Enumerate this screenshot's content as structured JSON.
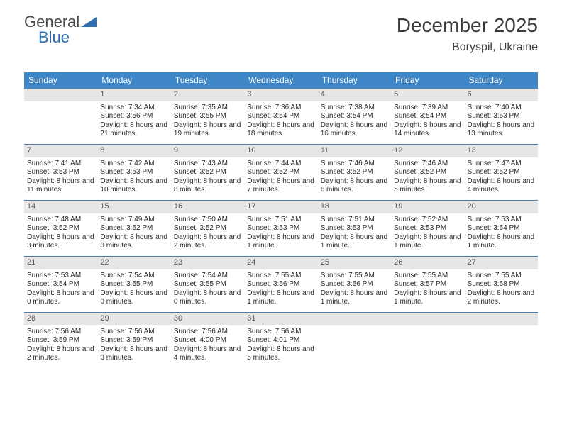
{
  "logo": {
    "word1": "General",
    "word2": "Blue",
    "word1_color": "#5a5a5a",
    "word2_color": "#2f6fb0",
    "tri_color": "#2f6fb0"
  },
  "header": {
    "month_title": "December 2025",
    "location": "Boryspil, Ukraine"
  },
  "colors": {
    "header_bar": "#3f86c7",
    "header_text": "#ffffff",
    "daynum_bg": "#e6e6e6",
    "week_border": "#4a7aa8",
    "body_text": "#2b2b2b"
  },
  "day_headers": [
    "Sunday",
    "Monday",
    "Tuesday",
    "Wednesday",
    "Thursday",
    "Friday",
    "Saturday"
  ],
  "weeks": [
    [
      {
        "n": "",
        "sr": "",
        "ss": "",
        "dl": ""
      },
      {
        "n": "1",
        "sr": "Sunrise: 7:34 AM",
        "ss": "Sunset: 3:56 PM",
        "dl": "Daylight: 8 hours and 21 minutes."
      },
      {
        "n": "2",
        "sr": "Sunrise: 7:35 AM",
        "ss": "Sunset: 3:55 PM",
        "dl": "Daylight: 8 hours and 19 minutes."
      },
      {
        "n": "3",
        "sr": "Sunrise: 7:36 AM",
        "ss": "Sunset: 3:54 PM",
        "dl": "Daylight: 8 hours and 18 minutes."
      },
      {
        "n": "4",
        "sr": "Sunrise: 7:38 AM",
        "ss": "Sunset: 3:54 PM",
        "dl": "Daylight: 8 hours and 16 minutes."
      },
      {
        "n": "5",
        "sr": "Sunrise: 7:39 AM",
        "ss": "Sunset: 3:54 PM",
        "dl": "Daylight: 8 hours and 14 minutes."
      },
      {
        "n": "6",
        "sr": "Sunrise: 7:40 AM",
        "ss": "Sunset: 3:53 PM",
        "dl": "Daylight: 8 hours and 13 minutes."
      }
    ],
    [
      {
        "n": "7",
        "sr": "Sunrise: 7:41 AM",
        "ss": "Sunset: 3:53 PM",
        "dl": "Daylight: 8 hours and 11 minutes."
      },
      {
        "n": "8",
        "sr": "Sunrise: 7:42 AM",
        "ss": "Sunset: 3:53 PM",
        "dl": "Daylight: 8 hours and 10 minutes."
      },
      {
        "n": "9",
        "sr": "Sunrise: 7:43 AM",
        "ss": "Sunset: 3:52 PM",
        "dl": "Daylight: 8 hours and 8 minutes."
      },
      {
        "n": "10",
        "sr": "Sunrise: 7:44 AM",
        "ss": "Sunset: 3:52 PM",
        "dl": "Daylight: 8 hours and 7 minutes."
      },
      {
        "n": "11",
        "sr": "Sunrise: 7:46 AM",
        "ss": "Sunset: 3:52 PM",
        "dl": "Daylight: 8 hours and 6 minutes."
      },
      {
        "n": "12",
        "sr": "Sunrise: 7:46 AM",
        "ss": "Sunset: 3:52 PM",
        "dl": "Daylight: 8 hours and 5 minutes."
      },
      {
        "n": "13",
        "sr": "Sunrise: 7:47 AM",
        "ss": "Sunset: 3:52 PM",
        "dl": "Daylight: 8 hours and 4 minutes."
      }
    ],
    [
      {
        "n": "14",
        "sr": "Sunrise: 7:48 AM",
        "ss": "Sunset: 3:52 PM",
        "dl": "Daylight: 8 hours and 3 minutes."
      },
      {
        "n": "15",
        "sr": "Sunrise: 7:49 AM",
        "ss": "Sunset: 3:52 PM",
        "dl": "Daylight: 8 hours and 3 minutes."
      },
      {
        "n": "16",
        "sr": "Sunrise: 7:50 AM",
        "ss": "Sunset: 3:52 PM",
        "dl": "Daylight: 8 hours and 2 minutes."
      },
      {
        "n": "17",
        "sr": "Sunrise: 7:51 AM",
        "ss": "Sunset: 3:53 PM",
        "dl": "Daylight: 8 hours and 1 minute."
      },
      {
        "n": "18",
        "sr": "Sunrise: 7:51 AM",
        "ss": "Sunset: 3:53 PM",
        "dl": "Daylight: 8 hours and 1 minute."
      },
      {
        "n": "19",
        "sr": "Sunrise: 7:52 AM",
        "ss": "Sunset: 3:53 PM",
        "dl": "Daylight: 8 hours and 1 minute."
      },
      {
        "n": "20",
        "sr": "Sunrise: 7:53 AM",
        "ss": "Sunset: 3:54 PM",
        "dl": "Daylight: 8 hours and 1 minute."
      }
    ],
    [
      {
        "n": "21",
        "sr": "Sunrise: 7:53 AM",
        "ss": "Sunset: 3:54 PM",
        "dl": "Daylight: 8 hours and 0 minutes."
      },
      {
        "n": "22",
        "sr": "Sunrise: 7:54 AM",
        "ss": "Sunset: 3:55 PM",
        "dl": "Daylight: 8 hours and 0 minutes."
      },
      {
        "n": "23",
        "sr": "Sunrise: 7:54 AM",
        "ss": "Sunset: 3:55 PM",
        "dl": "Daylight: 8 hours and 0 minutes."
      },
      {
        "n": "24",
        "sr": "Sunrise: 7:55 AM",
        "ss": "Sunset: 3:56 PM",
        "dl": "Daylight: 8 hours and 1 minute."
      },
      {
        "n": "25",
        "sr": "Sunrise: 7:55 AM",
        "ss": "Sunset: 3:56 PM",
        "dl": "Daylight: 8 hours and 1 minute."
      },
      {
        "n": "26",
        "sr": "Sunrise: 7:55 AM",
        "ss": "Sunset: 3:57 PM",
        "dl": "Daylight: 8 hours and 1 minute."
      },
      {
        "n": "27",
        "sr": "Sunrise: 7:55 AM",
        "ss": "Sunset: 3:58 PM",
        "dl": "Daylight: 8 hours and 2 minutes."
      }
    ],
    [
      {
        "n": "28",
        "sr": "Sunrise: 7:56 AM",
        "ss": "Sunset: 3:59 PM",
        "dl": "Daylight: 8 hours and 2 minutes."
      },
      {
        "n": "29",
        "sr": "Sunrise: 7:56 AM",
        "ss": "Sunset: 3:59 PM",
        "dl": "Daylight: 8 hours and 3 minutes."
      },
      {
        "n": "30",
        "sr": "Sunrise: 7:56 AM",
        "ss": "Sunset: 4:00 PM",
        "dl": "Daylight: 8 hours and 4 minutes."
      },
      {
        "n": "31",
        "sr": "Sunrise: 7:56 AM",
        "ss": "Sunset: 4:01 PM",
        "dl": "Daylight: 8 hours and 5 minutes."
      },
      {
        "n": "",
        "sr": "",
        "ss": "",
        "dl": ""
      },
      {
        "n": "",
        "sr": "",
        "ss": "",
        "dl": ""
      },
      {
        "n": "",
        "sr": "",
        "ss": "",
        "dl": ""
      }
    ]
  ]
}
